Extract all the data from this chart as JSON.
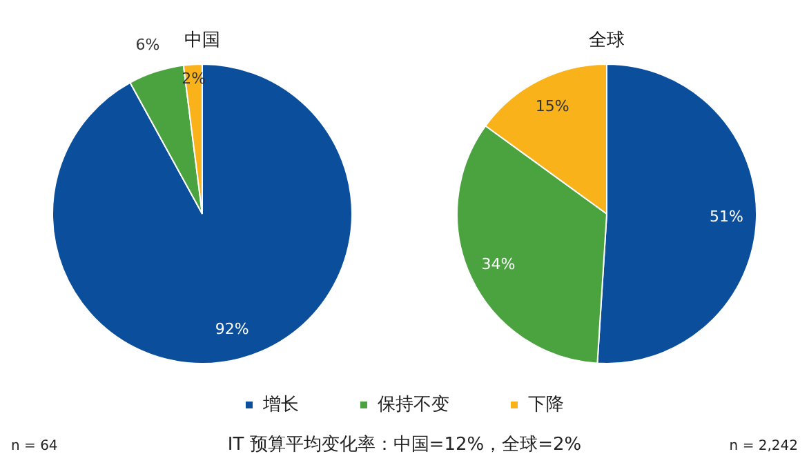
{
  "chart_data": [
    {
      "type": "pie",
      "title": "中国",
      "categories": [
        "增长",
        "保持不变",
        "下降"
      ],
      "values": [
        92,
        6,
        2
      ],
      "colors": [
        "#0b4f9c",
        "#4aa33f",
        "#f9b219"
      ],
      "value_labels": [
        "92%",
        "6%",
        "2%"
      ],
      "legend": "bottom",
      "annotations": [
        "n = 64",
        "IT 预算平均变化率：中国=12%，全球=2%"
      ]
    },
    {
      "type": "pie",
      "title": "全球",
      "categories": [
        null,
        null,
        null
      ],
      "values": [
        51,
        34,
        15
      ],
      "colors": [
        "#0b4f9c",
        "#4aa33f",
        "#f9b219"
      ],
      "value_labels": [
        "51%",
        "34%",
        "15%"
      ],
      "annotations": [
        "n = 2,242"
      ]
    }
  ]
}
